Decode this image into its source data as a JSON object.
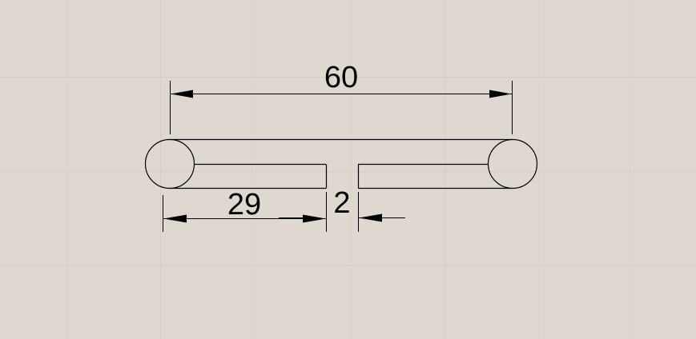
{
  "colors": {
    "background": "#ded8d0",
    "grid": "#d2ccc3",
    "line": "#000000"
  },
  "dimensions": {
    "overall_length": "60",
    "segment_length": "29",
    "gap_width": "2"
  }
}
